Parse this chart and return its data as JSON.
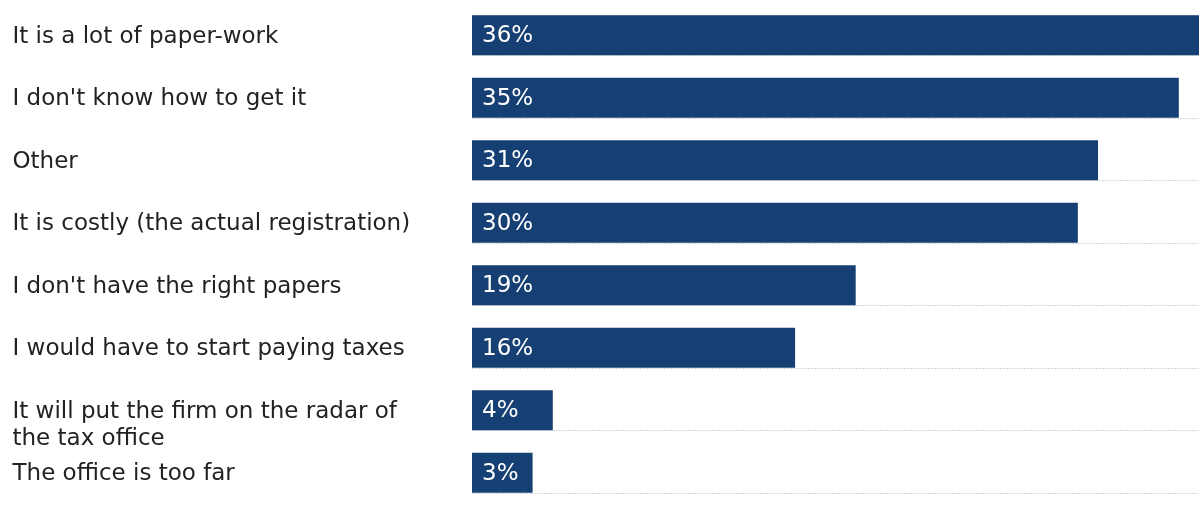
{
  "chart_data": {
    "type": "bar",
    "orientation": "horizontal",
    "categories": [
      "It is a lot of paper-work",
      "I don't know how to get it",
      "Other",
      "It is costly (the actual registration)",
      "I don't have the right papers",
      "I would have to start paying taxes",
      "It will put the firm on the radar of the tax office",
      "The office is too far"
    ],
    "values": [
      36,
      35,
      31,
      30,
      19,
      16,
      4,
      3
    ],
    "value_labels": [
      "36%",
      "35%",
      "31%",
      "30%",
      "19%",
      "16%",
      "4%",
      "3%"
    ],
    "color": "#163f73",
    "grid": "y"
  }
}
